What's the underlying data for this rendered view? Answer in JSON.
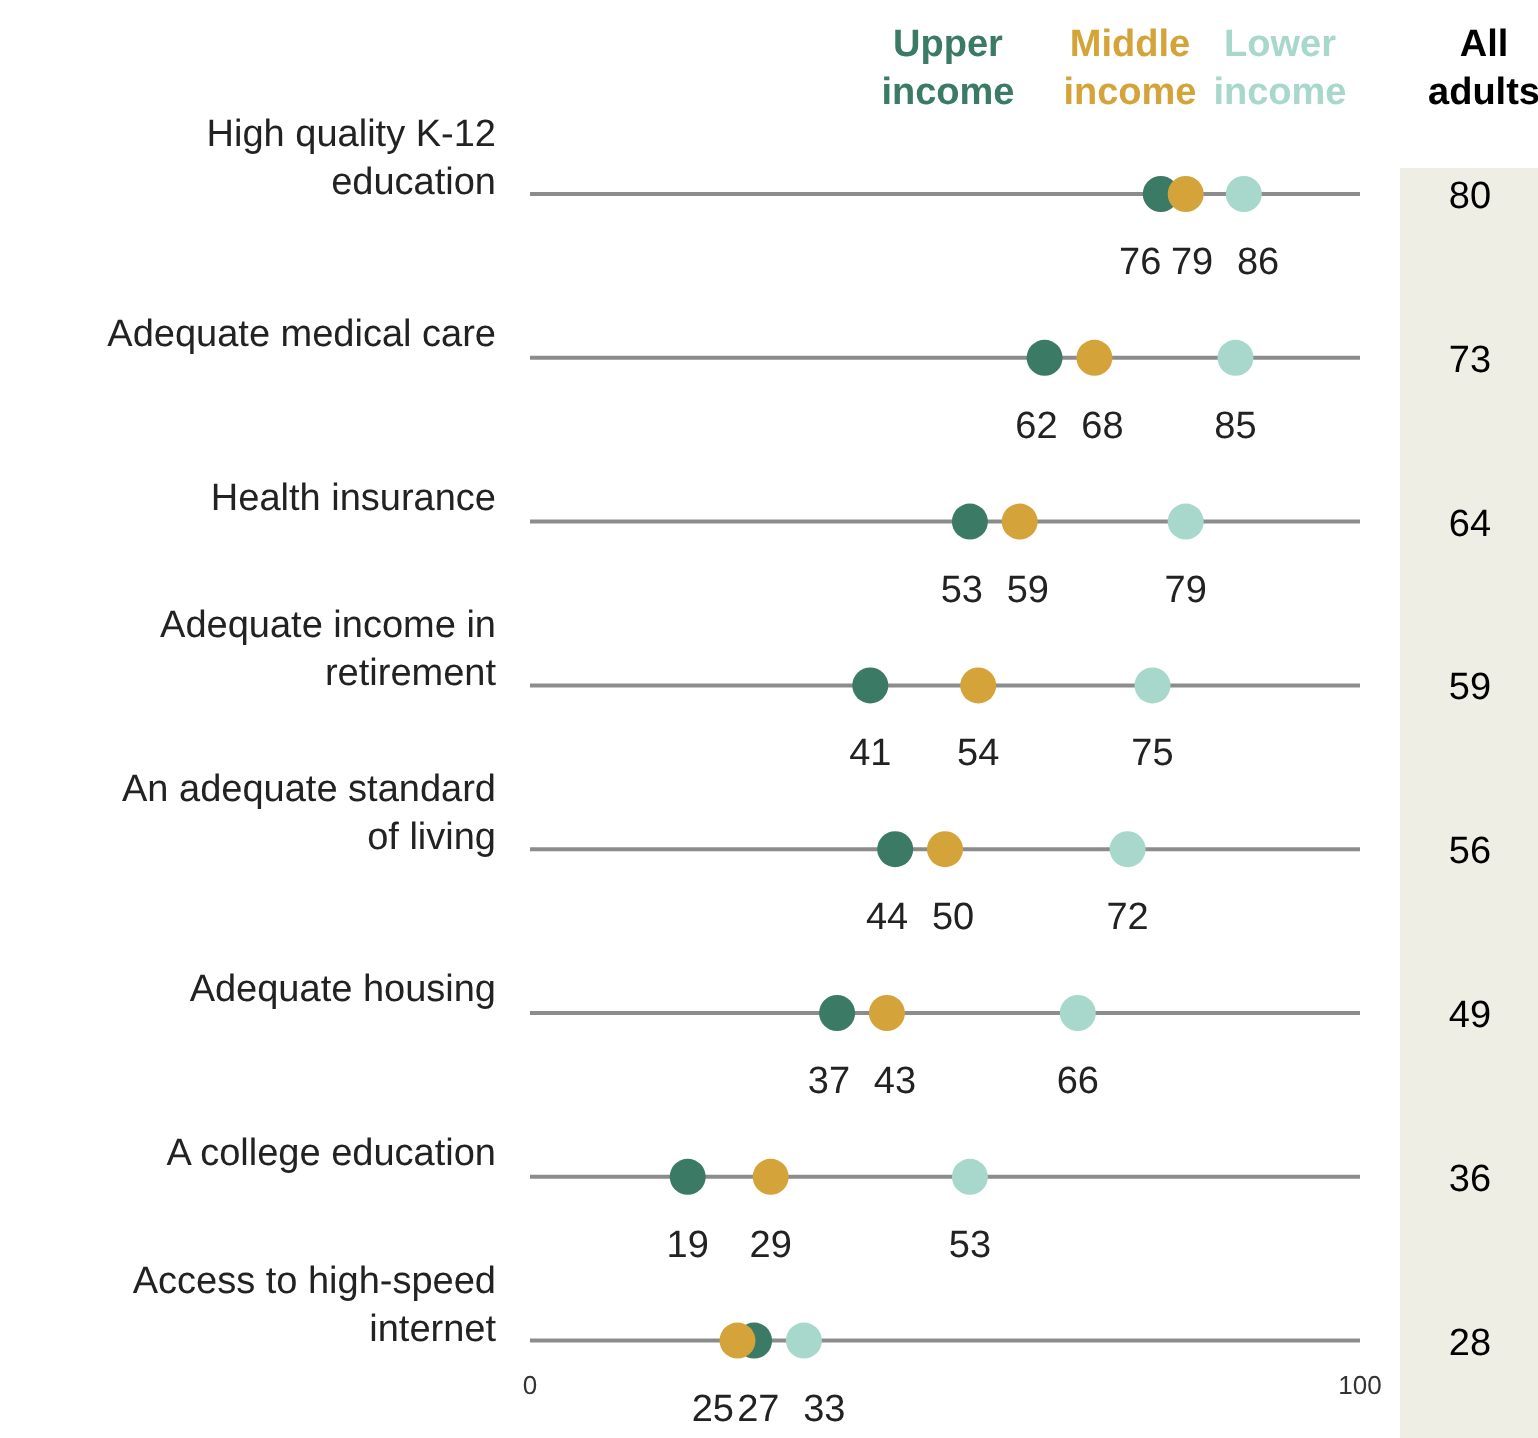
{
  "chart_data": {
    "type": "scatter",
    "orientation": "horizontal",
    "categories": [
      "High quality K-12 education",
      "Adequate medical care",
      "Health insurance",
      "Adequate income in retirement",
      "An adequate standard of living",
      "Adequate housing",
      "A college education",
      "Access to high-speed internet"
    ],
    "series": [
      {
        "name": "Upper income",
        "color": "#3b7a64",
        "values": [
          76,
          62,
          53,
          41,
          44,
          37,
          19,
          27
        ]
      },
      {
        "name": "Middle income",
        "color": "#d4a43a",
        "values": [
          79,
          68,
          59,
          54,
          50,
          43,
          29,
          25
        ]
      },
      {
        "name": "Lower income",
        "color": "#a7d8cb",
        "values": [
          86,
          85,
          79,
          75,
          72,
          66,
          53,
          33
        ]
      }
    ],
    "xlim": [
      0,
      100
    ],
    "xticks": [
      0,
      100
    ],
    "marker": "circle",
    "data_labels": true,
    "legend": "top",
    "annotations": [
      "All adults",
      "80",
      "73",
      "64",
      "59",
      "56",
      "49",
      "36",
      "28"
    ]
  }
}
